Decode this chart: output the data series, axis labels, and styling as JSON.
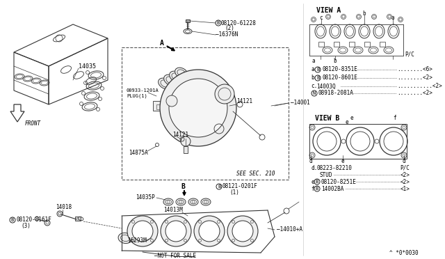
{
  "bg_color": "#ffffff",
  "lc": "#333333",
  "tc": "#000000",
  "fig_width": 6.4,
  "fig_height": 3.72,
  "dpi": 100,
  "view_a_label": "VIEW A",
  "view_b_label": "VIEW B",
  "watermark": "^ *0*0030"
}
